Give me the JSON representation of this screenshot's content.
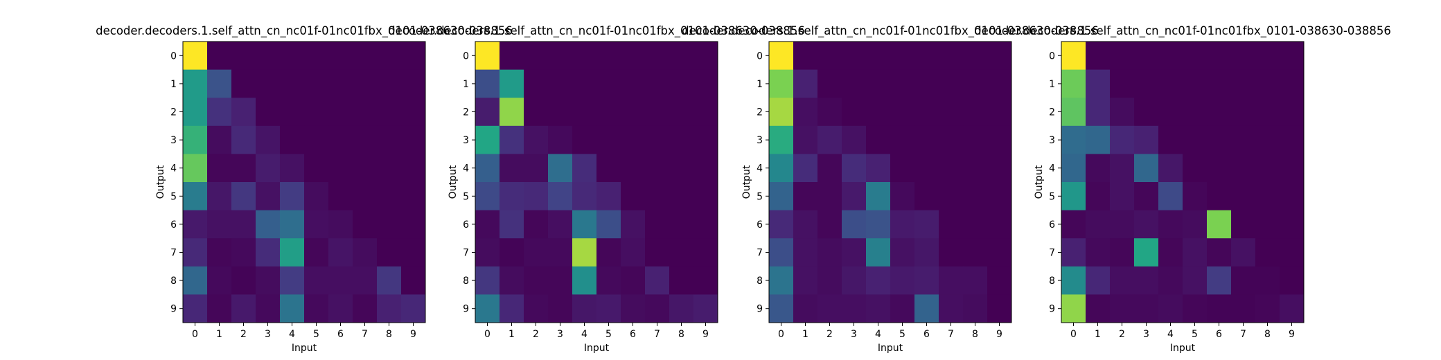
{
  "chart_data": [
    {
      "type": "heatmap",
      "title": "decoder.decoders.1.self_attn_cn_nc01f-01nc01fbx_0101-038630-038856",
      "xlabel": "Input",
      "ylabel": "Output",
      "x_ticks": [
        "0",
        "1",
        "2",
        "3",
        "4",
        "5",
        "6",
        "7",
        "8",
        "9"
      ],
      "y_ticks": [
        "0",
        "1",
        "2",
        "3",
        "4",
        "5",
        "6",
        "7",
        "8",
        "9"
      ],
      "colormap": "viridis",
      "zlim": [
        0,
        1
      ],
      "values": [
        [
          1.0,
          0.0,
          0.0,
          0.0,
          0.0,
          0.0,
          0.0,
          0.0,
          0.0,
          0.0
        ],
        [
          0.68,
          0.32,
          0.0,
          0.0,
          0.0,
          0.0,
          0.0,
          0.0,
          0.0,
          0.0
        ],
        [
          0.68,
          0.18,
          0.12,
          0.0,
          0.0,
          0.0,
          0.0,
          0.0,
          0.0,
          0.0
        ],
        [
          0.78,
          0.04,
          0.15,
          0.07,
          0.0,
          0.0,
          0.0,
          0.0,
          0.0,
          0.0
        ],
        [
          0.85,
          0.02,
          0.02,
          0.1,
          0.06,
          0.0,
          0.0,
          0.0,
          0.0,
          0.0
        ],
        [
          0.52,
          0.08,
          0.2,
          0.06,
          0.22,
          0.04,
          0.0,
          0.0,
          0.0,
          0.0
        ],
        [
          0.09,
          0.06,
          0.06,
          0.38,
          0.45,
          0.05,
          0.04,
          0.0,
          0.0,
          0.0
        ],
        [
          0.15,
          0.02,
          0.03,
          0.16,
          0.7,
          0.02,
          0.07,
          0.04,
          0.0,
          0.0
        ],
        [
          0.42,
          0.03,
          0.01,
          0.04,
          0.22,
          0.05,
          0.05,
          0.05,
          0.2,
          0.0
        ],
        [
          0.14,
          0.02,
          0.09,
          0.03,
          0.48,
          0.03,
          0.06,
          0.02,
          0.12,
          0.14
        ]
      ]
    },
    {
      "type": "heatmap",
      "title": "decoder.decoders.1.self_attn_cn_nc01f-01nc01fbx_0101-038630-038856",
      "xlabel": "Input",
      "ylabel": "Output",
      "x_ticks": [
        "0",
        "1",
        "2",
        "3",
        "4",
        "5",
        "6",
        "7",
        "8",
        "9"
      ],
      "y_ticks": [
        "0",
        "1",
        "2",
        "3",
        "4",
        "5",
        "6",
        "7",
        "8",
        "9"
      ],
      "colormap": "viridis",
      "zlim": [
        0,
        1
      ],
      "values": [
        [
          1.0,
          0.0,
          0.0,
          0.0,
          0.0,
          0.0,
          0.0,
          0.0,
          0.0,
          0.0
        ],
        [
          0.3,
          0.68,
          0.0,
          0.0,
          0.0,
          0.0,
          0.0,
          0.0,
          0.0,
          0.0
        ],
        [
          0.1,
          0.9,
          0.0,
          0.0,
          0.0,
          0.0,
          0.0,
          0.0,
          0.0,
          0.0
        ],
        [
          0.74,
          0.18,
          0.06,
          0.03,
          0.0,
          0.0,
          0.0,
          0.0,
          0.0,
          0.0
        ],
        [
          0.38,
          0.04,
          0.04,
          0.45,
          0.16,
          0.0,
          0.0,
          0.0,
          0.0,
          0.0
        ],
        [
          0.28,
          0.16,
          0.15,
          0.25,
          0.15,
          0.12,
          0.0,
          0.0,
          0.0,
          0.0
        ],
        [
          0.03,
          0.18,
          0.02,
          0.05,
          0.5,
          0.3,
          0.06,
          0.0,
          0.0,
          0.0
        ],
        [
          0.04,
          0.01,
          0.03,
          0.03,
          0.92,
          0.02,
          0.05,
          0.0,
          0.0,
          0.0
        ],
        [
          0.2,
          0.04,
          0.02,
          0.02,
          0.62,
          0.03,
          0.02,
          0.12,
          0.0,
          0.0
        ],
        [
          0.5,
          0.14,
          0.03,
          0.02,
          0.08,
          0.09,
          0.04,
          0.03,
          0.08,
          0.1
        ]
      ]
    },
    {
      "type": "heatmap",
      "title": "decoder.decoders.1.self_attn_cn_nc01f-01nc01fbx_0101-038630-038856",
      "xlabel": "Input",
      "ylabel": "Output",
      "x_ticks": [
        "0",
        "1",
        "2",
        "3",
        "4",
        "5",
        "6",
        "7",
        "8",
        "9"
      ],
      "y_ticks": [
        "0",
        "1",
        "2",
        "3",
        "4",
        "5",
        "6",
        "7",
        "8",
        "9"
      ],
      "colormap": "viridis",
      "zlim": [
        0,
        1
      ],
      "values": [
        [
          1.0,
          0.0,
          0.0,
          0.0,
          0.0,
          0.0,
          0.0,
          0.0,
          0.0,
          0.0
        ],
        [
          0.88,
          0.12,
          0.0,
          0.0,
          0.0,
          0.0,
          0.0,
          0.0,
          0.0,
          0.0
        ],
        [
          0.92,
          0.05,
          0.02,
          0.0,
          0.0,
          0.0,
          0.0,
          0.0,
          0.0,
          0.0
        ],
        [
          0.76,
          0.06,
          0.1,
          0.06,
          0.0,
          0.0,
          0.0,
          0.0,
          0.0,
          0.0
        ],
        [
          0.58,
          0.16,
          0.02,
          0.16,
          0.12,
          0.0,
          0.0,
          0.0,
          0.0,
          0.0
        ],
        [
          0.4,
          0.02,
          0.02,
          0.09,
          0.52,
          0.03,
          0.0,
          0.0,
          0.0,
          0.0
        ],
        [
          0.15,
          0.06,
          0.02,
          0.3,
          0.32,
          0.09,
          0.1,
          0.0,
          0.0,
          0.0
        ],
        [
          0.3,
          0.06,
          0.04,
          0.06,
          0.54,
          0.06,
          0.08,
          0.0,
          0.0,
          0.0
        ],
        [
          0.48,
          0.06,
          0.04,
          0.08,
          0.12,
          0.09,
          0.1,
          0.05,
          0.05,
          0.0
        ],
        [
          0.34,
          0.04,
          0.05,
          0.05,
          0.06,
          0.03,
          0.4,
          0.05,
          0.04,
          0.0
        ]
      ]
    },
    {
      "type": "heatmap",
      "title": "decoder.decoders.1.self_attn_cn_nc01f-01nc01fbx_0101-038630-038856",
      "xlabel": "Input",
      "ylabel": "Output",
      "x_ticks": [
        "0",
        "1",
        "2",
        "3",
        "4",
        "5",
        "6",
        "7",
        "8",
        "9"
      ],
      "y_ticks": [
        "0",
        "1",
        "2",
        "3",
        "4",
        "5",
        "6",
        "7",
        "8",
        "9"
      ],
      "colormap": "viridis",
      "zlim": [
        0,
        1
      ],
      "values": [
        [
          1.0,
          0.0,
          0.0,
          0.0,
          0.0,
          0.0,
          0.0,
          0.0,
          0.0,
          0.0
        ],
        [
          0.86,
          0.14,
          0.0,
          0.0,
          0.0,
          0.0,
          0.0,
          0.0,
          0.0,
          0.0
        ],
        [
          0.84,
          0.14,
          0.04,
          0.0,
          0.0,
          0.0,
          0.0,
          0.0,
          0.0,
          0.0
        ],
        [
          0.44,
          0.42,
          0.14,
          0.12,
          0.0,
          0.0,
          0.0,
          0.0,
          0.0,
          0.0
        ],
        [
          0.42,
          0.03,
          0.06,
          0.42,
          0.08,
          0.0,
          0.0,
          0.0,
          0.0,
          0.0
        ],
        [
          0.66,
          0.02,
          0.06,
          0.02,
          0.28,
          0.02,
          0.0,
          0.0,
          0.0,
          0.0
        ],
        [
          0.02,
          0.04,
          0.04,
          0.06,
          0.03,
          0.04,
          0.88,
          0.0,
          0.0,
          0.0
        ],
        [
          0.12,
          0.03,
          0.02,
          0.74,
          0.02,
          0.06,
          0.02,
          0.06,
          0.0,
          0.0
        ],
        [
          0.6,
          0.14,
          0.05,
          0.05,
          0.03,
          0.06,
          0.22,
          0.01,
          0.01,
          0.0
        ],
        [
          0.9,
          0.02,
          0.03,
          0.03,
          0.04,
          0.02,
          0.01,
          0.01,
          0.02,
          0.05
        ]
      ]
    }
  ]
}
